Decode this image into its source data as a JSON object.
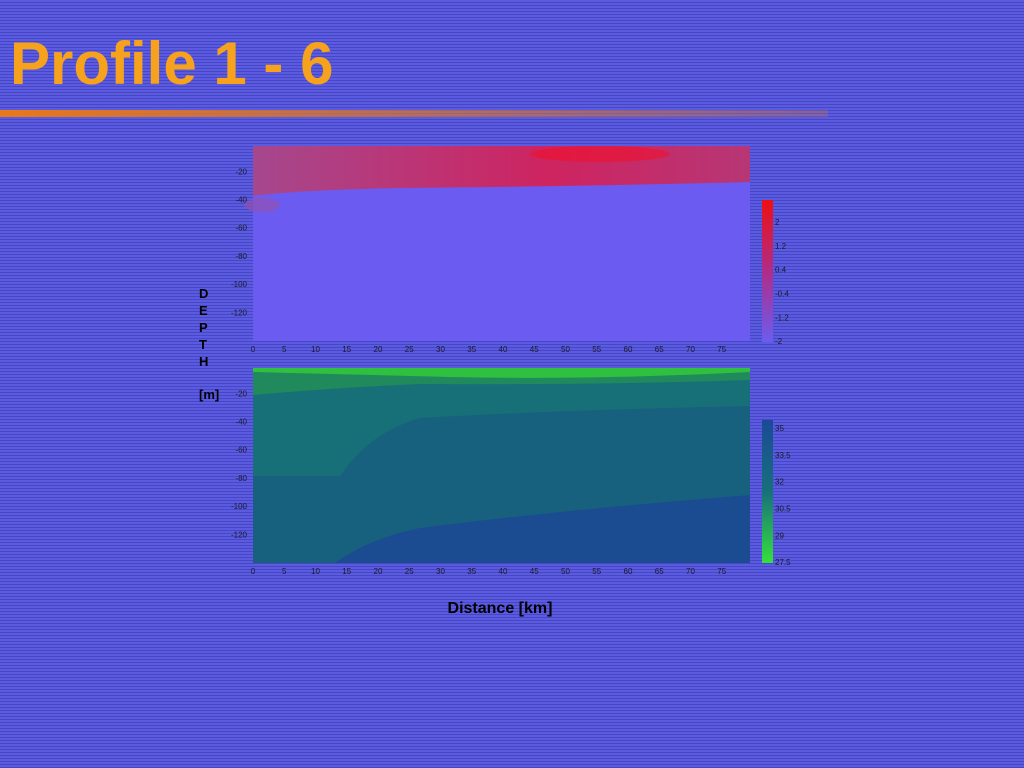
{
  "title": "Profile 1 - 6",
  "depth_label": "DEPTH",
  "depth_unit": "[m]",
  "x_axis_label": "Distance [km]",
  "plots": [
    {
      "y_ticks": [
        -20,
        -40,
        -60,
        -80,
        -100,
        -120
      ],
      "x_ticks": [
        0,
        5,
        10,
        15,
        20,
        25,
        30,
        35,
        40,
        45,
        50,
        55,
        60,
        65,
        70,
        75
      ],
      "colorbar_ticks": [
        2,
        1.2,
        0.4,
        -0.4,
        -1.2,
        -2
      ]
    },
    {
      "y_ticks": [
        -20,
        -40,
        -60,
        -80,
        -100,
        -120
      ],
      "x_ticks": [
        0,
        5,
        10,
        15,
        20,
        25,
        30,
        35,
        40,
        45,
        50,
        55,
        60,
        65,
        70,
        75
      ],
      "colorbar_ticks": [
        35,
        33.5,
        32,
        30.5,
        29,
        27.5
      ]
    }
  ]
}
